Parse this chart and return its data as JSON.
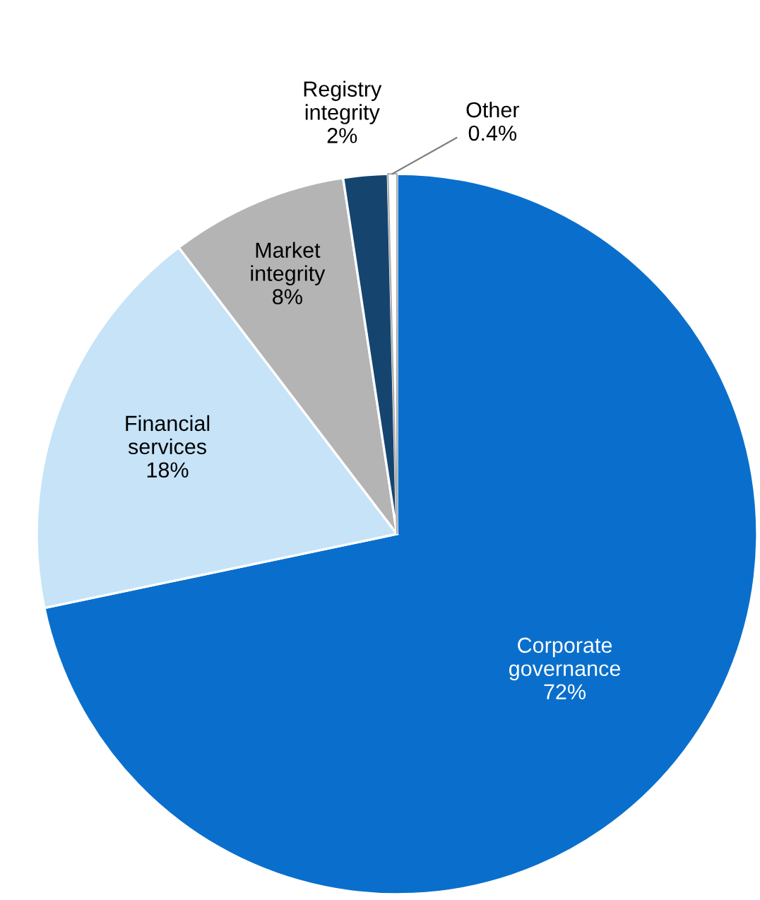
{
  "chart_data": {
    "type": "pie",
    "categories": [
      "Corporate governance",
      "Financial services",
      "Market integrity",
      "Registry integrity",
      "Other"
    ],
    "values": [
      72,
      18,
      8,
      2,
      0.4
    ],
    "colors": [
      "#0a6fcc",
      "#c6e3f8",
      "#b4b4b4",
      "#15456f",
      "#ffffff"
    ],
    "value_labels": [
      "72%",
      "18%",
      "8%",
      "2%",
      "0.4%"
    ]
  }
}
